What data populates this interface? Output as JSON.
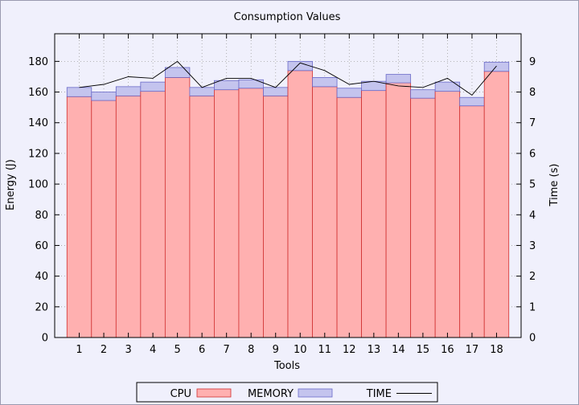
{
  "chart_data": {
    "type": "bar",
    "title": "Consumption Values",
    "xlabel": "Tools",
    "ylabel": "Energy (J)",
    "y2label": "Time (s)",
    "categories": [
      "1",
      "2",
      "3",
      "4",
      "5",
      "6",
      "7",
      "8",
      "9",
      "10",
      "11",
      "12",
      "13",
      "14",
      "15",
      "16",
      "17",
      "18"
    ],
    "ylim": [
      0,
      198
    ],
    "y2lim": [
      0,
      9.9
    ],
    "yticks": [
      0,
      20,
      40,
      60,
      80,
      100,
      120,
      140,
      160,
      180
    ],
    "y2ticks": [
      0,
      1,
      2,
      3,
      4,
      5,
      6,
      7,
      8,
      9
    ],
    "grid": true,
    "legend_position": "bottom",
    "stacked": true,
    "series": [
      {
        "name": "CPU",
        "color": "#ffb0b0",
        "edge": "#d03030",
        "values": [
          157,
          154.5,
          157.5,
          160.5,
          169.5,
          157.5,
          161.5,
          162.5,
          157.5,
          174,
          163.5,
          156.5,
          161,
          166,
          156,
          160.5,
          151,
          173.5
        ]
      },
      {
        "name": "MEMORY",
        "color": "#c4c4ee",
        "edge": "#6a6ac8",
        "values": [
          6,
          5.5,
          6,
          6,
          6.5,
          5.5,
          6,
          5.5,
          5.5,
          6,
          6,
          6,
          6,
          5.5,
          5.5,
          6,
          5.5,
          6
        ]
      },
      {
        "name": "TIME",
        "color": "#000000",
        "axis": "y2",
        "values": [
          8.15,
          8.25,
          8.5,
          8.45,
          9.0,
          8.15,
          8.45,
          8.45,
          8.15,
          8.95,
          8.7,
          8.25,
          8.35,
          8.2,
          8.15,
          8.45,
          7.9,
          8.85
        ]
      }
    ]
  }
}
